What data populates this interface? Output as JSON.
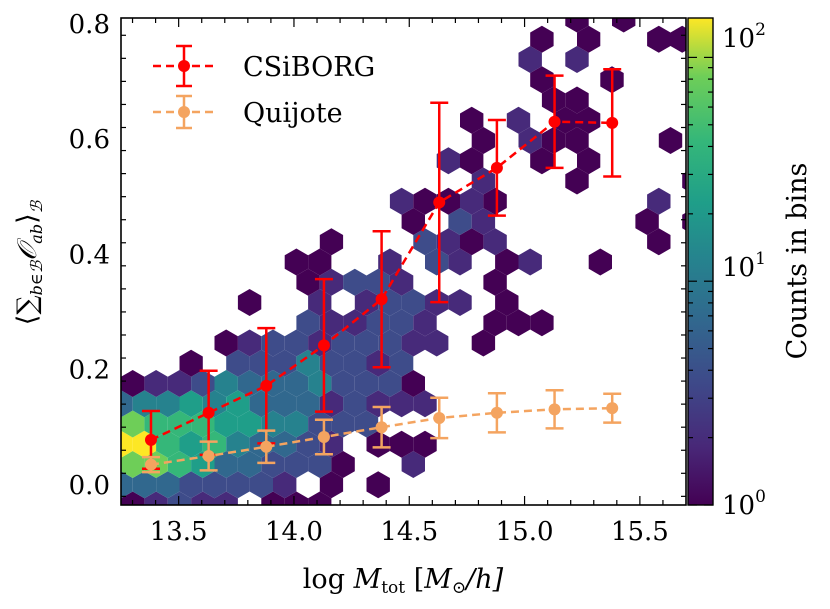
{
  "chart_data": {
    "type": "scatter",
    "subtype": "hexbin-with-errorbars",
    "xlabel": "log M_tot [M_⊙/h]",
    "xlabel_parts": {
      "prefix": "log ",
      "var": "M",
      "sub": "tot",
      "unit_open": " [",
      "unit_var": "M",
      "unit_sub": "⊙",
      "unit_rest": "/h]"
    },
    "ylabel": "⟨∑_{b∈B} O_ab⟩_B",
    "ylabel_parts": {
      "open": "⟨",
      "sum": "∑",
      "sum_sub": "b∈ℬ",
      "var": "𝒪",
      "var_sub": "ab",
      "close": "⟩",
      "close_sub": "ℬ"
    },
    "xlim": [
      13.25,
      15.7
    ],
    "ylim": [
      -0.035,
      0.81
    ],
    "xticks": [
      13.5,
      14.0,
      14.5,
      15.0,
      15.5
    ],
    "xtick_labels": [
      "13.5",
      "14.0",
      "14.5",
      "15.0",
      "15.5"
    ],
    "yticks": [
      0.0,
      0.2,
      0.4,
      0.6,
      0.8
    ],
    "ytick_labels": [
      "0.0",
      "0.2",
      "0.4",
      "0.6",
      "0.8"
    ],
    "legend_position": "top-left",
    "series": [
      {
        "name": "CSiBORG",
        "color": "#ff0000",
        "x": [
          13.38,
          13.63,
          13.88,
          14.13,
          14.38,
          14.63,
          14.88,
          15.13,
          15.38
        ],
        "y": [
          0.078,
          0.125,
          0.172,
          0.242,
          0.322,
          0.49,
          0.55,
          0.63,
          0.628
        ],
        "yerr": [
          0.05,
          0.073,
          0.1,
          0.115,
          0.118,
          0.173,
          0.083,
          0.08,
          0.093
        ]
      },
      {
        "name": "Quijote",
        "color": "#f4a460",
        "x": [
          13.38,
          13.63,
          13.88,
          14.13,
          14.38,
          14.63,
          14.88,
          15.13,
          15.38
        ],
        "y": [
          0.035,
          0.05,
          0.066,
          0.083,
          0.1,
          0.116,
          0.125,
          0.131,
          0.133
        ],
        "yerr": [
          0.013,
          0.025,
          0.028,
          0.03,
          0.035,
          0.035,
          0.034,
          0.033,
          0.025
        ]
      }
    ],
    "colorbar": {
      "label": "Counts in bins",
      "scale": "log",
      "range": [
        1,
        150
      ],
      "ticks": [
        1,
        10,
        100
      ],
      "tick_base": "10",
      "tick_exponents": [
        "0",
        "1",
        "2"
      ],
      "colormap": "viridis"
    },
    "hexbin_colors": {
      "c1": "#440154",
      "c2": "#472a7a",
      "c3": "#3e4c8a",
      "c4": "#31688e",
      "c5": "#26828e",
      "c6": "#1f9e89",
      "c7": "#35b779",
      "c8": "#6ece58",
      "c9": "#b5de2b",
      "c10": "#fde725"
    }
  }
}
